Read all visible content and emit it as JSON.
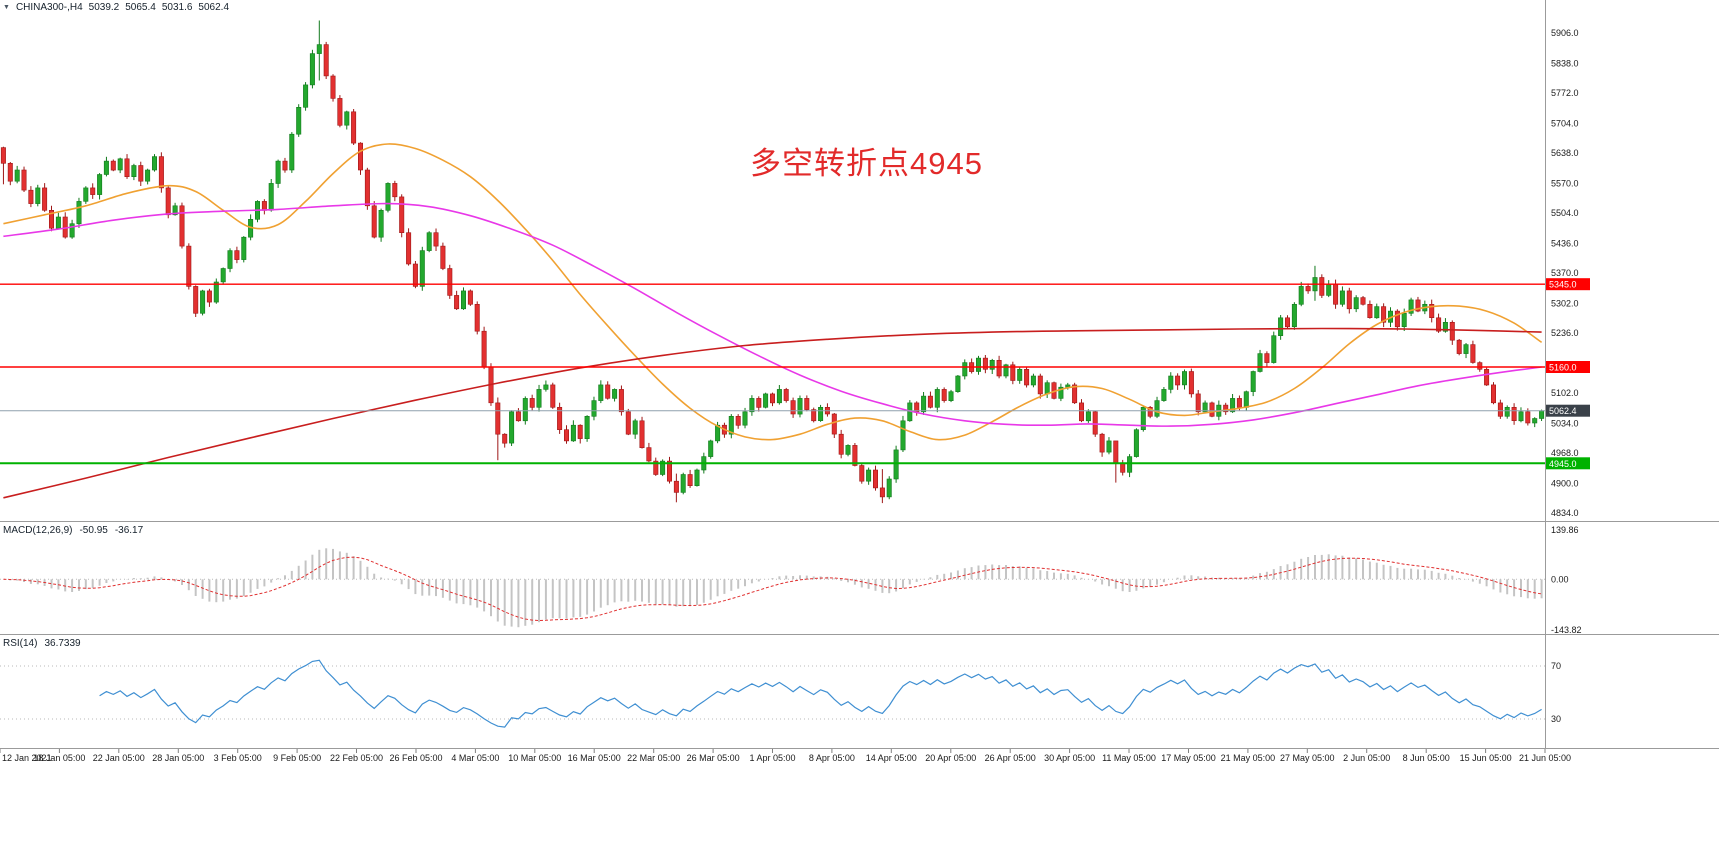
{
  "header": {
    "marker": "▼",
    "symbol_period": "CHINA300-,H4",
    "open": "5039.2",
    "high": "5065.4",
    "low": "5031.6",
    "close": "5062.4"
  },
  "colors": {
    "background": "#FFFFFF",
    "up": "#23A82E",
    "up_stroke": "#117A1C",
    "down": "#E23030",
    "down_stroke": "#9E1717",
    "axis_text": "#1A1A1A",
    "panel_border": "#9B9B9B"
  },
  "chart_data": [
    {
      "type": "candlestick",
      "symbol": "CHINA300-",
      "timeframe": "H4",
      "last_ohlc": {
        "open": 5039.2,
        "high": 5065.4,
        "low": 5031.6,
        "close": 5062.4
      },
      "annotation": {
        "text": "多空转折点4945",
        "color": "#E22A2A"
      },
      "y_axis": {
        "min": 4834,
        "max": 5906,
        "tick_values": [
          5906,
          5838,
          5772,
          5704,
          5638,
          5570,
          5504,
          5436,
          5370,
          5302,
          5236,
          5102,
          5034,
          4968,
          4900,
          4834
        ],
        "tick_labels": [
          "5906.0",
          "5838.0",
          "5772.0",
          "5704.0",
          "5638.0",
          "5570.0",
          "5504.0",
          "5436.0",
          "5370.0",
          "5302.0",
          "5236.0",
          "5102.0",
          "5034.0",
          "4968.0",
          "4900.0",
          "4834.0"
        ]
      },
      "x_labels": [
        "12 Jan 2021",
        "18 Jan 05:00",
        "22 Jan 05:00",
        "28 Jan 05:00",
        "3 Feb 05:00",
        "9 Feb 05:00",
        "22 Feb 05:00",
        "26 Feb 05:00",
        "4 Mar 05:00",
        "10 Mar 05:00",
        "16 Mar 05:00",
        "22 Mar 05:00",
        "26 Mar 05:00",
        "1 Apr 05:00",
        "8 Apr 05:00",
        "14 Apr 05:00",
        "20 Apr 05:00",
        "26 Apr 05:00",
        "30 Apr 05:00",
        "11 May 05:00",
        "17 May 05:00",
        "21 May 05:00",
        "27 May 05:00",
        "2 Jun 05:00",
        "8 Jun 05:00",
        "15 Jun 05:00",
        "21 Jun 05:00"
      ],
      "first_open": 5650,
      "close": [
        5615,
        5575,
        5600,
        5555,
        5525,
        5560,
        5510,
        5470,
        5495,
        5450,
        5480,
        5530,
        5560,
        5545,
        5590,
        5620,
        5600,
        5625,
        5585,
        5610,
        5575,
        5600,
        5630,
        5560,
        5500,
        5520,
        5430,
        5340,
        5280,
        5330,
        5305,
        5350,
        5380,
        5420,
        5400,
        5450,
        5490,
        5530,
        5510,
        5570,
        5620,
        5600,
        5680,
        5740,
        5790,
        5860,
        5880,
        5810,
        5760,
        5700,
        5730,
        5660,
        5600,
        5520,
        5450,
        5510,
        5570,
        5540,
        5460,
        5390,
        5340,
        5420,
        5460,
        5430,
        5380,
        5320,
        5290,
        5330,
        5300,
        5240,
        5160,
        5080,
        5010,
        4990,
        5060,
        5040,
        5090,
        5070,
        5110,
        5120,
        5070,
        5020,
        4995,
        5030,
        5000,
        5050,
        5085,
        5120,
        5090,
        5110,
        5060,
        5010,
        5040,
        4980,
        4950,
        4920,
        4950,
        4905,
        4880,
        4920,
        4895,
        4930,
        4960,
        4995,
        5030,
        5010,
        5050,
        5030,
        5060,
        5090,
        5070,
        5100,
        5080,
        5110,
        5085,
        5055,
        5090,
        5065,
        5040,
        5070,
        5055,
        5010,
        4965,
        4985,
        4940,
        4905,
        4930,
        4890,
        4870,
        4910,
        4975,
        5040,
        5080,
        5060,
        5095,
        5070,
        5110,
        5085,
        5105,
        5140,
        5170,
        5150,
        5180,
        5155,
        5175,
        5140,
        5165,
        5130,
        5155,
        5120,
        5140,
        5100,
        5125,
        5090,
        5115,
        5120,
        5080,
        5040,
        5060,
        5010,
        4970,
        4995,
        4945,
        4925,
        4960,
        5020,
        5070,
        5050,
        5085,
        5110,
        5140,
        5120,
        5150,
        5100,
        5060,
        5080,
        5050,
        5075,
        5060,
        5090,
        5070,
        5105,
        5150,
        5190,
        5170,
        5230,
        5270,
        5250,
        5300,
        5340,
        5330,
        5360,
        5320,
        5345,
        5300,
        5330,
        5290,
        5315,
        5300,
        5270,
        5295,
        5260,
        5285,
        5250,
        5280,
        5310,
        5285,
        5300,
        5270,
        5240,
        5260,
        5220,
        5190,
        5210,
        5170,
        5155,
        5120,
        5080,
        5050,
        5070,
        5040,
        5060,
        5035,
        5045,
        5062.4
      ],
      "wick_overrides": [
        [
          0,
          5652,
          5568
        ],
        [
          46,
          5934,
          5800
        ],
        [
          72,
          5092,
          4952
        ],
        [
          98,
          4922,
          4858
        ],
        [
          128,
          4932,
          4856
        ],
        [
          162,
          4988,
          4902
        ],
        [
          191,
          5386,
          5308
        ]
      ],
      "moving_averages": [
        {
          "name": "ma-fast-orange",
          "color": "#F0A132",
          "points": [
            [
              0,
              5480
            ],
            [
              6,
              5500
            ],
            [
              12,
              5520
            ],
            [
              18,
              5548
            ],
            [
              24,
              5565
            ],
            [
              28,
              5552
            ],
            [
              32,
              5510
            ],
            [
              36,
              5472
            ],
            [
              40,
              5478
            ],
            [
              44,
              5530
            ],
            [
              48,
              5592
            ],
            [
              52,
              5642
            ],
            [
              56,
              5658
            ],
            [
              60,
              5648
            ],
            [
              64,
              5622
            ],
            [
              68,
              5585
            ],
            [
              72,
              5532
            ],
            [
              76,
              5468
            ],
            [
              80,
              5398
            ],
            [
              84,
              5322
            ],
            [
              88,
              5252
            ],
            [
              92,
              5185
            ],
            [
              96,
              5122
            ],
            [
              100,
              5068
            ],
            [
              104,
              5028
            ],
            [
              108,
              5004
            ],
            [
              112,
              4998
            ],
            [
              116,
              5010
            ],
            [
              120,
              5032
            ],
            [
              124,
              5046
            ],
            [
              128,
              5040
            ],
            [
              132,
              5016
            ],
            [
              136,
              4998
            ],
            [
              140,
              5008
            ],
            [
              144,
              5038
            ],
            [
              148,
              5072
            ],
            [
              152,
              5100
            ],
            [
              156,
              5116
            ],
            [
              160,
              5112
            ],
            [
              164,
              5088
            ],
            [
              168,
              5060
            ],
            [
              172,
              5052
            ],
            [
              176,
              5060
            ],
            [
              180,
              5068
            ],
            [
              184,
              5082
            ],
            [
              188,
              5112
            ],
            [
              192,
              5158
            ],
            [
              196,
              5212
            ],
            [
              200,
              5255
            ],
            [
              204,
              5282
            ],
            [
              208,
              5295
            ],
            [
              212,
              5296
            ],
            [
              216,
              5285
            ],
            [
              220,
              5258
            ],
            [
              224,
              5215
            ]
          ]
        },
        {
          "name": "ma-mid-magenta",
          "color": "#E838E8",
          "points": [
            [
              0,
              5452
            ],
            [
              8,
              5468
            ],
            [
              16,
              5488
            ],
            [
              24,
              5502
            ],
            [
              32,
              5508
            ],
            [
              40,
              5512
            ],
            [
              48,
              5520
            ],
            [
              56,
              5525
            ],
            [
              62,
              5518
            ],
            [
              68,
              5498
            ],
            [
              74,
              5468
            ],
            [
              80,
              5432
            ],
            [
              86,
              5385
            ],
            [
              92,
              5335
            ],
            [
              98,
              5282
            ],
            [
              104,
              5232
            ],
            [
              110,
              5185
            ],
            [
              116,
              5142
            ],
            [
              122,
              5106
            ],
            [
              128,
              5078
            ],
            [
              134,
              5055
            ],
            [
              140,
              5040
            ],
            [
              146,
              5032
            ],
            [
              152,
              5030
            ],
            [
              158,
              5033
            ],
            [
              164,
              5030
            ],
            [
              170,
              5028
            ],
            [
              176,
              5032
            ],
            [
              182,
              5042
            ],
            [
              188,
              5058
            ],
            [
              194,
              5078
            ],
            [
              200,
              5098
            ],
            [
              206,
              5118
            ],
            [
              212,
              5134
            ],
            [
              218,
              5148
            ],
            [
              224,
              5160
            ]
          ]
        },
        {
          "name": "ma-slow-red",
          "color": "#C81E1E",
          "points": [
            [
              0,
              4868
            ],
            [
              12,
              4912
            ],
            [
              24,
              4958
            ],
            [
              36,
              5002
            ],
            [
              48,
              5045
            ],
            [
              60,
              5086
            ],
            [
              72,
              5124
            ],
            [
              84,
              5158
            ],
            [
              96,
              5186
            ],
            [
              108,
              5208
            ],
            [
              120,
              5222
            ],
            [
              132,
              5232
            ],
            [
              144,
              5238
            ],
            [
              156,
              5241
            ],
            [
              168,
              5243
            ],
            [
              180,
              5245
            ],
            [
              192,
              5246
            ],
            [
              204,
              5245
            ],
            [
              214,
              5242
            ],
            [
              224,
              5238
            ]
          ]
        }
      ],
      "h_lines": [
        {
          "name": "resistance-line-5345",
          "price": 5345.0,
          "label": "5345.0",
          "color": "#FF0000",
          "width": 1.4
        },
        {
          "name": "resistance-line-5160",
          "price": 5160.0,
          "label": "5160.0",
          "color": "#FF0000",
          "width": 1.4
        },
        {
          "name": "support-line-4945",
          "price": 4945.0,
          "label": "4945.0",
          "color": "#00B200",
          "width": 2
        }
      ],
      "current_price": {
        "value": 5062.4,
        "label": "5062.4",
        "line_color": "#8FA0AE",
        "badge_color": "#3A4149"
      }
    },
    {
      "type": "macd",
      "label": "MACD(12,26,9)",
      "current_main": -50.95,
      "current_signal": -36.17,
      "params": {
        "fast": 12,
        "slow": 26,
        "signal": 9
      },
      "axis_values": [
        139.86,
        0,
        -143.82
      ],
      "axis_labels": [
        "139.86",
        "0.00",
        "-143.82"
      ],
      "histogram_color": "#C4C4C4",
      "signal_color": "#E03030"
    },
    {
      "type": "rsi",
      "label": "RSI(14)",
      "period": 14,
      "current": 36.7339,
      "levels": [
        70,
        30
      ],
      "level_color": "#B8B8B8",
      "line_color": "#3F8FD2"
    }
  ]
}
